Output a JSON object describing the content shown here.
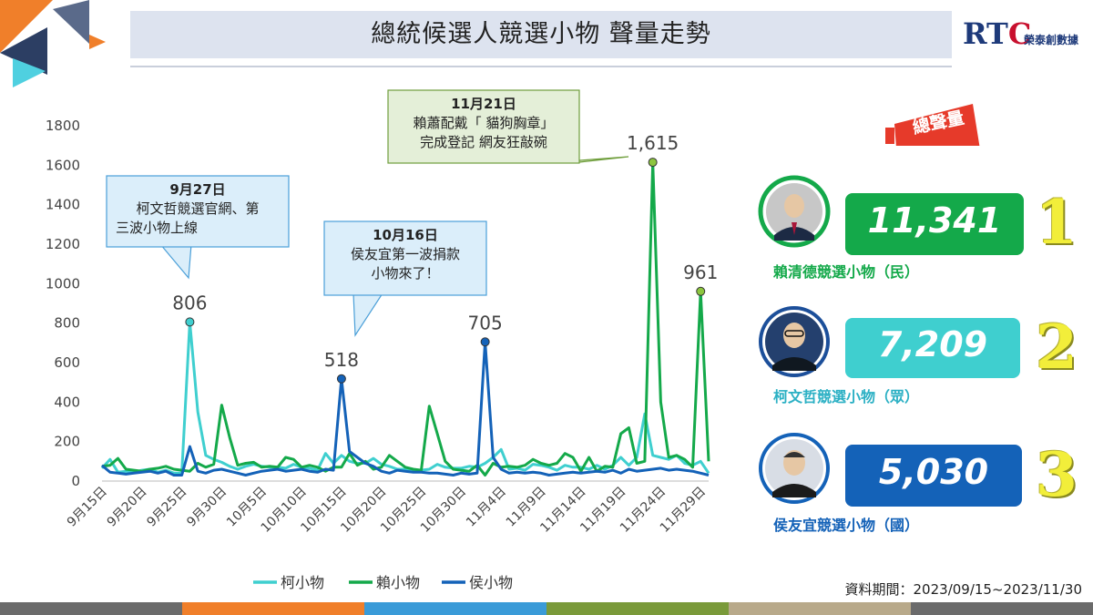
{
  "title": "總統候選人競選小物  聲量走勢",
  "logo": {
    "mark_r": "RT",
    "mark_c": "C",
    "subtitle": "榮泰創數據"
  },
  "period": "資料期間：2023/09/15~2023/11/30",
  "callouts": [
    {
      "heading": "9月27日",
      "lines": [
        "柯文哲競選官網、第",
        "三波小物上線"
      ]
    },
    {
      "heading": "10月16日",
      "lines": [
        "侯友宜第一波捐款",
        "小物來了！"
      ]
    },
    {
      "heading": "11月21日",
      "lines": [
        "賴蕭配戴「 貓狗胸章」",
        "完成登記 網友狂敲碗"
      ]
    }
  ],
  "badge": "總聲量",
  "candidates": [
    {
      "rank": "1",
      "total": "11,341",
      "label": "賴清德競選小物（民）",
      "color": "#14a94a",
      "label_color": "#14a94a"
    },
    {
      "rank": "2",
      "total": "7,209",
      "label": "柯文哲競選小物（眾）",
      "color": "#3fcfcf",
      "label_color": "#2bb0c4"
    },
    {
      "rank": "3",
      "total": "5,030",
      "label": "侯友宜競選小物（國）",
      "color": "#1462b8",
      "label_color": "#1462b8"
    }
  ],
  "footer_colors": [
    "#6b6b6b",
    "#f07f2a",
    "#3a9bd8",
    "#7a9a3a",
    "#b8a98a",
    "#6b6b6b"
  ],
  "chart_data": {
    "type": "line",
    "ylim": [
      0,
      1800
    ],
    "yticks": [
      "0",
      "200",
      "400",
      "600",
      "800",
      "1000",
      "1200",
      "1400",
      "1600",
      "1800"
    ],
    "x_tick_labels": [
      "9月15日",
      "9月20日",
      "9月25日",
      "9月30日",
      "10月5日",
      "10月10日",
      "10月15日",
      "10月20日",
      "10月25日",
      "10月30日",
      "11月4日",
      "11月9日",
      "11月14日",
      "11月19日",
      "11月24日",
      "11月29日"
    ],
    "x_start": "2023-09-15",
    "x_end": "2023-11-30",
    "series": [
      {
        "name": "柯小物",
        "color": "#3fcfcf",
        "values": [
          65,
          110,
          45,
          50,
          45,
          55,
          60,
          45,
          55,
          40,
          40,
          806,
          350,
          130,
          110,
          95,
          75,
          60,
          75,
          85,
          75,
          70,
          70,
          65,
          85,
          70,
          65,
          55,
          140,
          90,
          130,
          100,
          90,
          90,
          115,
          85,
          75,
          60,
          60,
          55,
          55,
          60,
          85,
          70,
          65,
          65,
          75,
          70,
          90,
          120,
          160,
          60,
          65,
          55,
          85,
          80,
          70,
          55,
          80,
          70,
          70,
          60,
          80,
          60,
          80,
          120,
          80,
          120,
          340,
          130,
          120,
          110,
          130,
          90,
          80,
          100,
          40
        ]
      },
      {
        "name": "賴小物",
        "color": "#14a94a",
        "values": [
          75,
          80,
          115,
          60,
          55,
          50,
          60,
          65,
          75,
          60,
          55,
          50,
          90,
          70,
          85,
          385,
          220,
          80,
          90,
          95,
          70,
          75,
          70,
          120,
          110,
          70,
          80,
          70,
          50,
          70,
          70,
          140,
          80,
          100,
          60,
          70,
          130,
          100,
          70,
          60,
          55,
          380,
          240,
          100,
          60,
          55,
          50,
          80,
          30,
          90,
          70,
          75,
          70,
          80,
          110,
          90,
          80,
          90,
          140,
          120,
          50,
          120,
          50,
          75,
          70,
          240,
          270,
          90,
          100,
          1615,
          400,
          120,
          130,
          110,
          70,
          961,
          100
        ]
      },
      {
        "name": "侯小物",
        "color": "#1462b8",
        "values": [
          80,
          45,
          40,
          35,
          40,
          45,
          50,
          40,
          50,
          30,
          30,
          175,
          50,
          40,
          55,
          60,
          50,
          40,
          30,
          40,
          50,
          55,
          60,
          50,
          55,
          60,
          50,
          45,
          60,
          55,
          518,
          150,
          120,
          90,
          75,
          50,
          40,
          55,
          50,
          45,
          45,
          40,
          40,
          35,
          30,
          40,
          35,
          40,
          705,
          120,
          60,
          40,
          45,
          40,
          45,
          40,
          30,
          35,
          40,
          45,
          40,
          45,
          50,
          45,
          55,
          40,
          60,
          50,
          55,
          60,
          65,
          55,
          60,
          55,
          50,
          40,
          30
        ]
      }
    ],
    "annotations": [
      {
        "series": "柯小物",
        "day_index": 11,
        "label": "806"
      },
      {
        "series": "侯小物",
        "day_index": 30,
        "label": "518"
      },
      {
        "series": "侯小物",
        "day_index": 48,
        "label": "705"
      },
      {
        "series": "賴小物",
        "day_index": 69,
        "label": "1,615"
      },
      {
        "series": "賴小物",
        "day_index": 75,
        "label": "961"
      }
    ],
    "grid": false,
    "legend_position": "bottom"
  }
}
